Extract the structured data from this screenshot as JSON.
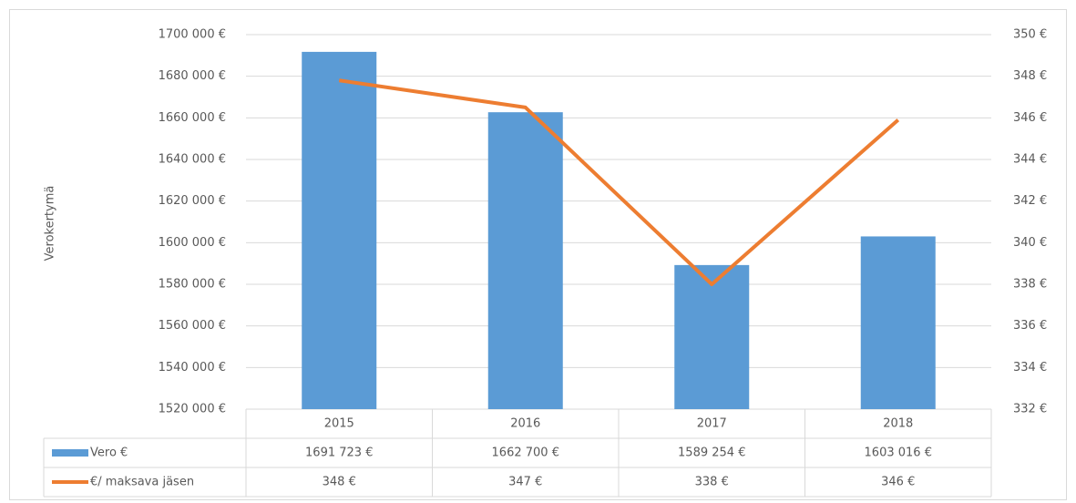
{
  "chart_data": {
    "type": "bar-line",
    "y_label": "Verokertymä",
    "categories": [
      "2015",
      "2016",
      "2017",
      "2018"
    ],
    "series": [
      {
        "name": "Vero €",
        "color": "#5b9bd5",
        "type": "bar",
        "axis": "y",
        "values": [
          1691723,
          1662700,
          1589254,
          1603016
        ],
        "value_labels": [
          "1691 723 €",
          "1662 700 €",
          "1589 254 €",
          "1603 016 €"
        ]
      },
      {
        "name": "€/ maksava jäsen",
        "color": "#ed7d31",
        "type": "line",
        "axis": "y2",
        "values": [
          347.8,
          346.5,
          338.0,
          345.9
        ],
        "value_labels": [
          "348 €",
          "347 €",
          "338 €",
          "346 €"
        ]
      }
    ],
    "ylim": [
      1520000,
      1700000
    ],
    "yticks": [
      {
        "value": 1520000,
        "label": "1520 000 €"
      },
      {
        "value": 1540000,
        "label": "1540 000 €"
      },
      {
        "value": 1560000,
        "label": "1560 000 €"
      },
      {
        "value": 1580000,
        "label": "1580 000 €"
      },
      {
        "value": 1600000,
        "label": "1600 000 €"
      },
      {
        "value": 1620000,
        "label": "1620 000 €"
      },
      {
        "value": 1640000,
        "label": "1640 000 €"
      },
      {
        "value": 1660000,
        "label": "1660 000 €"
      },
      {
        "value": 1680000,
        "label": "1680 000 €"
      },
      {
        "value": 1700000,
        "label": "1700 000 €"
      }
    ],
    "y2lim": [
      332,
      350
    ],
    "y2ticks": [
      {
        "value": 332,
        "label": "332 €"
      },
      {
        "value": 334,
        "label": "334 €"
      },
      {
        "value": 336,
        "label": "336 €"
      },
      {
        "value": 338,
        "label": "338 €"
      },
      {
        "value": 340,
        "label": "340 €"
      },
      {
        "value": 342,
        "label": "342 €"
      },
      {
        "value": 344,
        "label": "344 €"
      },
      {
        "value": 346,
        "label": "346 €"
      },
      {
        "value": 348,
        "label": "348 €"
      },
      {
        "value": 350,
        "label": "350 €"
      }
    ],
    "grid": true
  }
}
